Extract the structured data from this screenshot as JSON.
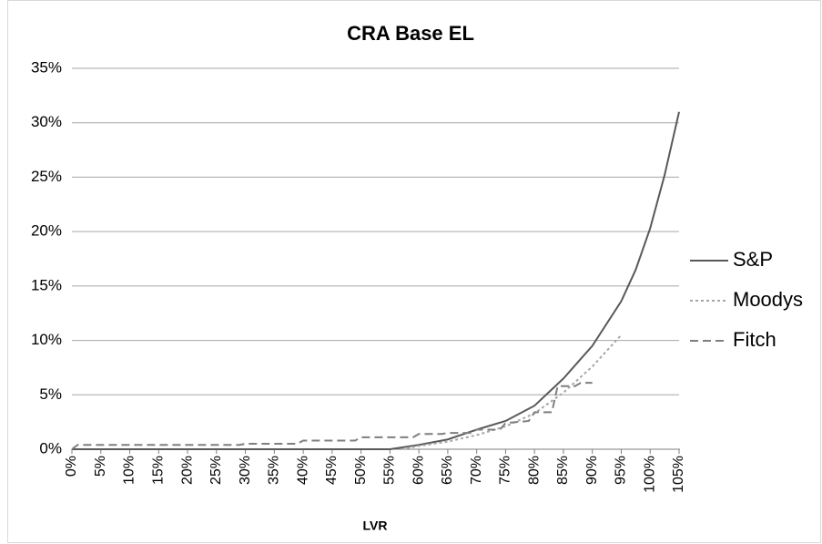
{
  "chart_data": {
    "type": "line",
    "title": "CRA Base EL",
    "x_label": "LVR",
    "xlim": [
      0,
      105
    ],
    "xticks": [
      {
        "value": 0,
        "label": "0%"
      },
      {
        "value": 5,
        "label": "5%"
      },
      {
        "value": 10,
        "label": "10%"
      },
      {
        "value": 15,
        "label": "15%"
      },
      {
        "value": 20,
        "label": "20%"
      },
      {
        "value": 25,
        "label": "25%"
      },
      {
        "value": 30,
        "label": "30%"
      },
      {
        "value": 35,
        "label": "35%"
      },
      {
        "value": 40,
        "label": "40%"
      },
      {
        "value": 45,
        "label": "45%"
      },
      {
        "value": 50,
        "label": "50%"
      },
      {
        "value": 55,
        "label": "55%"
      },
      {
        "value": 60,
        "label": "60%"
      },
      {
        "value": 65,
        "label": "65%"
      },
      {
        "value": 70,
        "label": "70%"
      },
      {
        "value": 75,
        "label": "75%"
      },
      {
        "value": 80,
        "label": "80%"
      },
      {
        "value": 85,
        "label": "85%"
      },
      {
        "value": 90,
        "label": "90%"
      },
      {
        "value": 95,
        "label": "95%"
      },
      {
        "value": 100,
        "label": "100%"
      },
      {
        "value": 105,
        "label": "105%"
      }
    ],
    "ylim": [
      0,
      35
    ],
    "yticks": [
      {
        "value": 0,
        "label": "0%"
      },
      {
        "value": 5,
        "label": "5%"
      },
      {
        "value": 10,
        "label": "10%"
      },
      {
        "value": 15,
        "label": "15%"
      },
      {
        "value": 20,
        "label": "20%"
      },
      {
        "value": 25,
        "label": "25%"
      },
      {
        "value": 30,
        "label": "30%"
      },
      {
        "value": 35,
        "label": "35%"
      }
    ],
    "grid": true,
    "legend": "right",
    "series": [
      {
        "name": "S&P",
        "color": "#595959",
        "dash": "none",
        "x": [
          0,
          55,
          60,
          65,
          70,
          75,
          80,
          85,
          90,
          95,
          97.5,
          100,
          102.5,
          105
        ],
        "values": [
          0,
          0,
          0.4,
          0.9,
          1.8,
          2.6,
          4.0,
          6.5,
          9.5,
          13.6,
          16.5,
          20.3,
          25.2,
          31
        ]
      },
      {
        "name": "Moodys",
        "color": "#a6a6a6",
        "dash": "3 3",
        "x": [
          57,
          60,
          65,
          70,
          75,
          80,
          85,
          90,
          95
        ],
        "values": [
          0,
          0.3,
          0.7,
          1.3,
          2.1,
          3.3,
          5.2,
          7.6,
          10.5
        ]
      },
      {
        "name": "Fitch",
        "color": "#7f7f7f",
        "dash": "9 5",
        "x": [
          0,
          1,
          29,
          30,
          39,
          40,
          49,
          50,
          59,
          60,
          64,
          65,
          69,
          70,
          74,
          75,
          79,
          80,
          83,
          84,
          87,
          88,
          90
        ],
        "values": [
          0,
          0.4,
          0.4,
          0.5,
          0.5,
          0.8,
          0.8,
          1.1,
          1.1,
          1.4,
          1.4,
          1.5,
          1.5,
          1.8,
          1.8,
          2.4,
          2.6,
          3.4,
          3.4,
          5.8,
          5.8,
          6.1,
          6.1
        ]
      }
    ]
  }
}
